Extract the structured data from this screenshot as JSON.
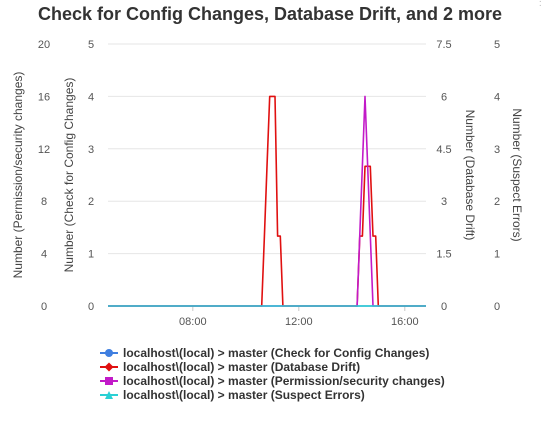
{
  "chart_data": {
    "type": "line",
    "title": "Check for Config Changes, Database Drift, and 2 more",
    "x_axis": {
      "ticks": [
        "08:00",
        "12:00",
        "16:00"
      ],
      "tick_hours": [
        8,
        12,
        16
      ],
      "range_hours": [
        4.8,
        16.8
      ]
    },
    "y_axes": [
      {
        "id": "perm",
        "label": "Number (Permission/security changes)",
        "position": "left-outer",
        "ticks": [
          "0",
          "4",
          "8",
          "12",
          "16",
          "20"
        ],
        "range": [
          0,
          20
        ]
      },
      {
        "id": "config",
        "label": "Number (Check for Config Changes)",
        "position": "left-inner",
        "ticks": [
          "0",
          "1",
          "2",
          "3",
          "4",
          "5"
        ],
        "range": [
          0,
          5
        ]
      },
      {
        "id": "drift",
        "label": "Number (Database Drift)",
        "position": "right-inner",
        "ticks": [
          "0",
          "1.5",
          "3",
          "4.5",
          "6",
          "7.5"
        ],
        "range": [
          0,
          7.5
        ]
      },
      {
        "id": "suspect",
        "label": "Number (Suspect Errors)",
        "position": "right-outer",
        "ticks": [
          "0",
          "1",
          "2",
          "3",
          "4",
          "5"
        ],
        "range": [
          0,
          5
        ]
      }
    ],
    "grid": true,
    "legend_position": "bottom",
    "series": [
      {
        "name": "localhost\\(local) > master (Check for Config Changes)",
        "axis": "config",
        "color": "#3f7fe0",
        "marker": "circle",
        "x": [
          4.8,
          16.8
        ],
        "y": [
          0,
          0
        ]
      },
      {
        "name": "localhost\\(local) > master (Database Drift)",
        "axis": "drift",
        "color": "#e01010",
        "marker": "diamond",
        "x": [
          4.8,
          10.6,
          10.7,
          10.8,
          10.9,
          11.0,
          11.1,
          11.2,
          11.3,
          11.4,
          14.2,
          14.3,
          14.4,
          14.5,
          14.6,
          14.7,
          14.8,
          14.9,
          15.0,
          16.8
        ],
        "y": [
          0,
          0,
          2,
          4,
          6,
          6,
          6,
          2,
          2,
          0,
          0,
          2,
          2,
          4,
          4,
          4,
          2,
          2,
          0,
          0
        ]
      },
      {
        "name": "localhost\\(local) > master (Permission/security changes)",
        "axis": "perm",
        "color": "#c21ac8",
        "marker": "square",
        "x": [
          4.8,
          14.2,
          14.5,
          14.8,
          16.8
        ],
        "y": [
          0,
          0,
          16,
          0,
          0
        ]
      },
      {
        "name": "localhost\\(local) > master (Suspect Errors)",
        "axis": "suspect",
        "color": "#2ad0d4",
        "marker": "triangle",
        "x": [
          4.8,
          16.8
        ],
        "y": [
          0,
          0
        ]
      }
    ]
  },
  "legend": [
    "localhost\\(local) > master (Check for Config Changes)",
    "localhost\\(local) > master (Database Drift)",
    "localhost\\(local) > master (Permission/security changes)",
    "localhost\\(local) > master (Suspect Errors)"
  ]
}
